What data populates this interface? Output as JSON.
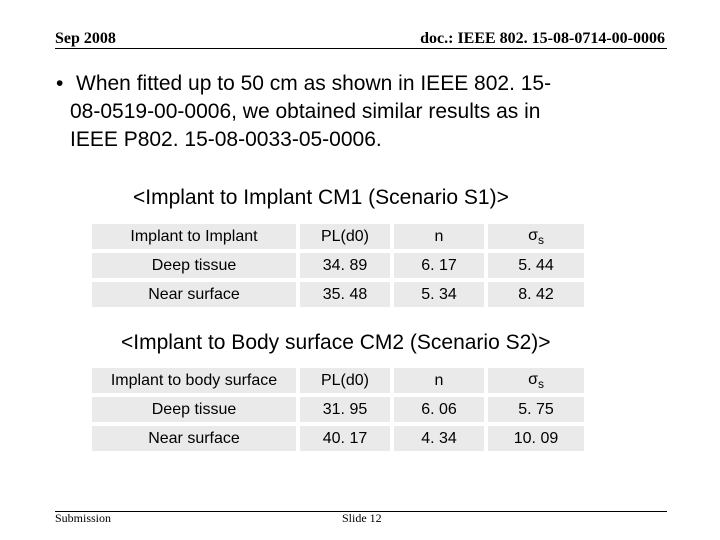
{
  "header": {
    "date": "Sep 2008",
    "doc_id": "doc.: IEEE 802. 15-08-0714-00-0006"
  },
  "bullet": {
    "symbol": "•",
    "line1": "When fitted up to 50 cm as shown in IEEE 802. 15-",
    "line2": "08-0519-00-0006, we obtained similar results as in",
    "line3": "IEEE P802. 15-08-0033-05-0006."
  },
  "table1": {
    "caption": "<Implant to Implant CM1 (Scenario S1)>",
    "headers": [
      "Implant to Implant",
      "PL(d0)",
      "n",
      "σ"
    ],
    "sigma_sub": "s",
    "rows": [
      [
        "Deep tissue",
        "34. 89",
        "6. 17",
        "5. 44"
      ],
      [
        "Near surface",
        "35. 48",
        "5. 34",
        "8. 42"
      ]
    ]
  },
  "table2": {
    "caption": "<Implant to Body surface CM2 (Scenario S2)>",
    "headers": [
      "Implant to body surface",
      "PL(d0)",
      "n",
      "σ"
    ],
    "sigma_sub": "s",
    "rows": [
      [
        "Deep tissue",
        "31. 95",
        "6. 06",
        "5. 75"
      ],
      [
        "Near surface",
        "40. 17",
        "4. 34",
        "10. 09"
      ]
    ]
  },
  "footer": {
    "left": "Submission",
    "center": "Slide 12"
  }
}
